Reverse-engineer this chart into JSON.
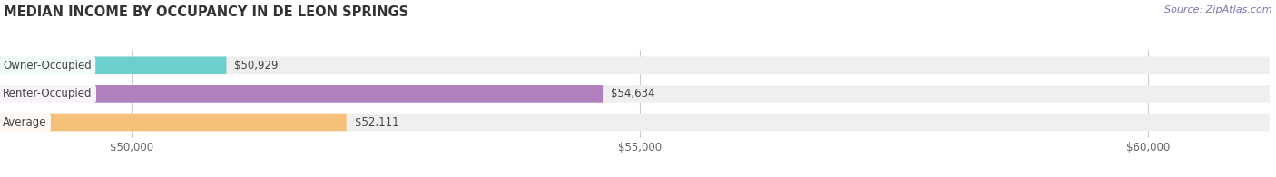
{
  "title": "Median Income by Occupancy in De Leon Springs",
  "source": "Source: ZipAtlas.com",
  "categories": [
    "Owner-Occupied",
    "Renter-Occupied",
    "Average"
  ],
  "values": [
    50929,
    54634,
    52111
  ],
  "bar_colors": [
    "#6dcfcc",
    "#b07fc0",
    "#f5c07a"
  ],
  "bar_bg_color": "#efefef",
  "value_labels": [
    "$50,929",
    "$54,634",
    "$52,111"
  ],
  "xlim_min": 48700,
  "xlim_max": 61200,
  "xticks": [
    50000,
    55000,
    60000
  ],
  "xtick_labels": [
    "$50,000",
    "$55,000",
    "$60,000"
  ],
  "bg_color": "#ffffff",
  "title_fontsize": 10.5,
  "label_fontsize": 8.5,
  "value_fontsize": 8.5,
  "source_fontsize": 8
}
